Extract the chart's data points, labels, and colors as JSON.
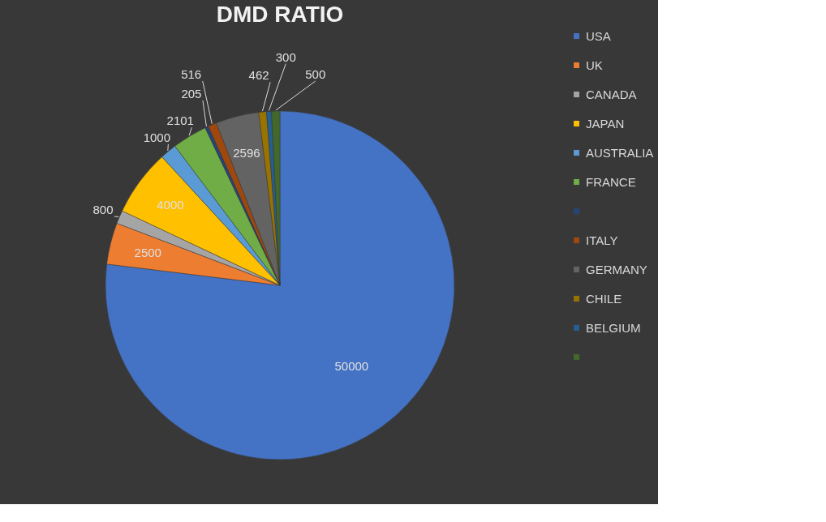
{
  "chart_data": {
    "type": "pie",
    "title": "DMD  RATIO",
    "categories": [
      "USA",
      "UK",
      "CANADA",
      "JAPAN",
      "AUSTRALIA",
      "FRANCE",
      null,
      "ITALY",
      "GERMANY",
      "CHILE",
      "BELGIUM",
      null
    ],
    "values": [
      50000,
      2500,
      800,
      4000,
      1000,
      2101,
      205,
      516,
      2596,
      462,
      300,
      500
    ],
    "colors": [
      "#4472c4",
      "#ed7d31",
      "#a5a5a5",
      "#ffc000",
      "#5b9bd5",
      "#70ad47",
      "#264478",
      "#9e480e",
      "#636363",
      "#997300",
      "#255e91",
      "#43682b"
    ],
    "data_labels": true,
    "legend": "right"
  }
}
